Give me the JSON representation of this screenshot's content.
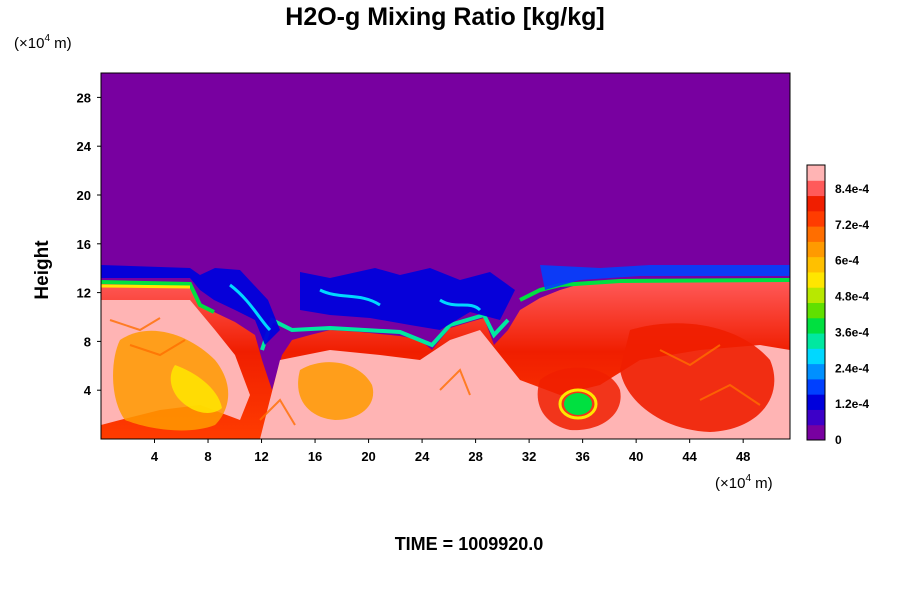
{
  "chart_data": {
    "type": "heatmap",
    "title": "H2O-g Mixing Ratio [kg/kg]",
    "ylabel": "Height",
    "x_unit": {
      "prefix": "(×10",
      "exponent": "4",
      "suffix": " m)"
    },
    "y_unit": {
      "prefix": "(×10",
      "exponent": "4",
      "suffix": " m)"
    },
    "xlim": [
      0,
      51.5
    ],
    "ylim": [
      0,
      30
    ],
    "x_ticks": [
      "4",
      "8",
      "12",
      "16",
      "20",
      "24",
      "28",
      "32",
      "36",
      "40",
      "44",
      "48"
    ],
    "y_ticks": [
      "4",
      "8",
      "12",
      "16",
      "20",
      "24",
      "28"
    ],
    "colorbar": {
      "range": [
        0,
        0.00092
      ],
      "ticks": [
        "0",
        "1.2e-4",
        "2.4e-4",
        "3.6e-4",
        "4.8e-4",
        "6e-4",
        "7.2e-4",
        "8.4e-4"
      ],
      "colors": [
        "#7800a0",
        "#3c00c8",
        "#0000dc",
        "#0040ff",
        "#0090ff",
        "#00d8ff",
        "#00e8a0",
        "#00e040",
        "#60e000",
        "#b8e800",
        "#ffe600",
        "#ffc000",
        "#ff9a00",
        "#ff6e00",
        "#ff3c00",
        "#f01e00",
        "#ff5a5a",
        "#ffb4b4"
      ]
    },
    "time_label": "TIME = 1009920.0",
    "field_description": {
      "dry_layer_above_km": 14,
      "moist_layer_top_km": 13,
      "min_value_region": "upper atmosphere (dry)",
      "max_value_region": "lower atmosphere (moist)"
    }
  }
}
